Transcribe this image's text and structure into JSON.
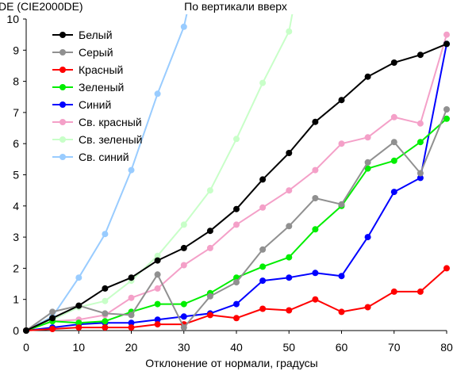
{
  "chart_data": {
    "type": "line",
    "title": "По вертикали вверх",
    "ylabel": "DE (CIE2000DE)",
    "xlabel": "Отклонение от нормали, градусы",
    "xlim": [
      0,
      80
    ],
    "ylim": [
      0,
      10
    ],
    "xticks": [
      0,
      10,
      20,
      30,
      40,
      50,
      60,
      70,
      80
    ],
    "yticks": [
      0,
      1,
      2,
      3,
      4,
      5,
      6,
      7,
      8,
      9,
      10
    ],
    "grid": false,
    "legend_position": "top-left",
    "series": [
      {
        "name": "Белый",
        "color": "#000000",
        "x": [
          0,
          5,
          10,
          15,
          20,
          25,
          30,
          35,
          40,
          45,
          50,
          55,
          60,
          65,
          70,
          75,
          80
        ],
        "y": [
          0,
          0.4,
          0.8,
          1.35,
          1.7,
          2.25,
          2.65,
          3.2,
          3.9,
          4.85,
          5.7,
          6.7,
          7.4,
          8.15,
          8.6,
          8.85,
          9.2
        ]
      },
      {
        "name": "Серый",
        "color": "#909090",
        "x": [
          0,
          5,
          10,
          15,
          20,
          25,
          30,
          35,
          40,
          45,
          50,
          55,
          60,
          65,
          70,
          75,
          80
        ],
        "y": [
          0,
          0.6,
          0.8,
          0.55,
          0.5,
          1.8,
          0.1,
          1.1,
          1.55,
          2.6,
          3.35,
          4.25,
          4.05,
          5.4,
          6.05,
          5.05,
          7.1
        ]
      },
      {
        "name": "Красный",
        "color": "#ff0000",
        "x": [
          0,
          5,
          10,
          15,
          20,
          25,
          30,
          35,
          40,
          45,
          50,
          55,
          60,
          65,
          70,
          75,
          80
        ],
        "y": [
          0,
          0.05,
          0.1,
          0.1,
          0.1,
          0.2,
          0.2,
          0.5,
          0.4,
          0.7,
          0.65,
          1.0,
          0.6,
          0.75,
          1.25,
          1.25,
          2.0
        ]
      },
      {
        "name": "Зеленый",
        "color": "#00ee00",
        "x": [
          0,
          5,
          10,
          15,
          20,
          25,
          30,
          35,
          40,
          45,
          50,
          55,
          60,
          65,
          70,
          75,
          80
        ],
        "y": [
          0,
          0.3,
          0.25,
          0.3,
          0.6,
          0.85,
          0.85,
          1.2,
          1.7,
          2.05,
          2.35,
          3.25,
          4.0,
          5.2,
          5.45,
          6.05,
          6.8
        ]
      },
      {
        "name": "Синий",
        "color": "#0000ff",
        "x": [
          0,
          5,
          10,
          15,
          20,
          25,
          30,
          35,
          40,
          45,
          50,
          55,
          60,
          65,
          70,
          75,
          80
        ],
        "y": [
          0,
          0.1,
          0.2,
          0.25,
          0.25,
          0.35,
          0.45,
          0.55,
          0.85,
          1.6,
          1.7,
          1.85,
          1.75,
          3.0,
          4.45,
          4.9,
          9.2
        ]
      },
      {
        "name": "Св. красный",
        "color": "#f4a0c8",
        "x": [
          0,
          5,
          10,
          15,
          20,
          25,
          30,
          35,
          40,
          45,
          50,
          55,
          60,
          65,
          70,
          75,
          80
        ],
        "y": [
          0,
          0.3,
          0.35,
          0.5,
          1.05,
          1.35,
          2.1,
          2.65,
          3.4,
          3.95,
          4.5,
          5.15,
          6.0,
          6.2,
          6.85,
          6.65,
          9.5
        ]
      },
      {
        "name": "Св. зеленый",
        "color": "#c8ffc8",
        "x": [
          0,
          5,
          10,
          15,
          20,
          25,
          30,
          35,
          40,
          45,
          50,
          51
        ],
        "y": [
          0,
          0.35,
          0.75,
          0.95,
          1.6,
          2.4,
          3.4,
          4.5,
          6.15,
          7.95,
          9.6,
          10.5
        ]
      },
      {
        "name": "Св. синий",
        "color": "#99ccff",
        "x": [
          0,
          5,
          10,
          15,
          20,
          25,
          30,
          31
        ],
        "y": [
          0,
          0.45,
          1.7,
          3.1,
          5.15,
          7.6,
          9.75,
          10.5
        ]
      }
    ]
  }
}
